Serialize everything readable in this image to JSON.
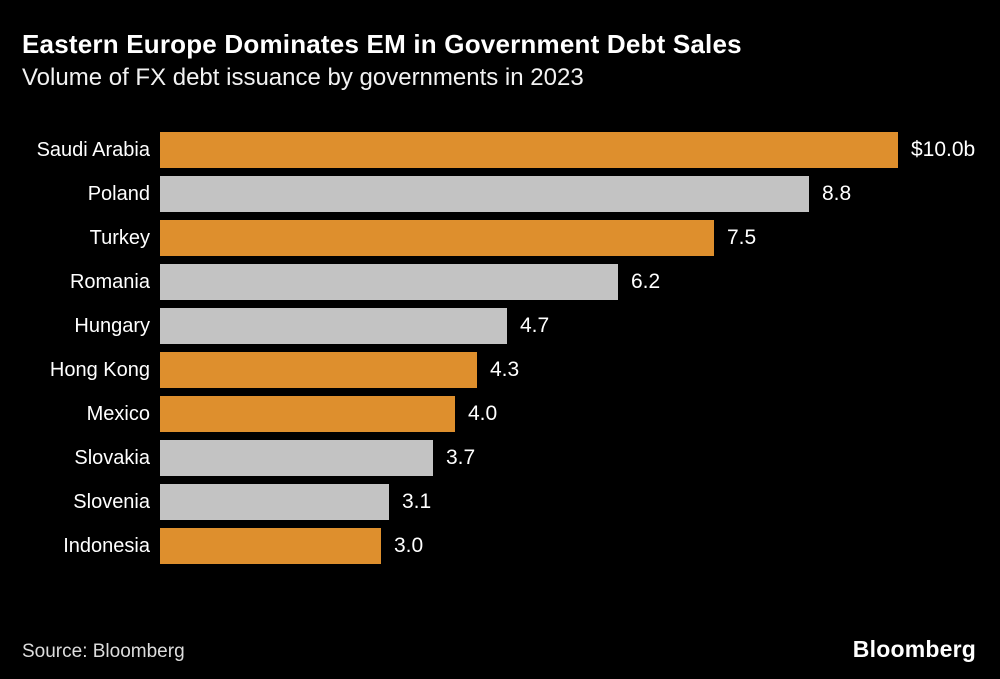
{
  "header": {
    "title": "Eastern Europe Dominates EM in Government Debt Sales",
    "subtitle": "Volume of FX debt issuance by governments in 2023"
  },
  "chart_data": {
    "type": "bar",
    "orientation": "horizontal",
    "title": "Eastern Europe Dominates EM in Government Debt Sales",
    "subtitle": "Volume of FX debt issuance by governments in 2023",
    "categories": [
      "Saudi Arabia",
      "Poland",
      "Turkey",
      "Romania",
      "Hungary",
      "Hong Kong",
      "Mexico",
      "Slovakia",
      "Slovenia",
      "Indonesia"
    ],
    "values": [
      10.0,
      8.8,
      7.5,
      6.2,
      4.7,
      4.3,
      4.0,
      3.7,
      3.1,
      3.0
    ],
    "value_labels": [
      "$10.0b",
      "8.8",
      "7.5",
      "6.2",
      "4.7",
      "4.3",
      "4.0",
      "3.7",
      "3.1",
      "3.0"
    ],
    "bar_colors": [
      "#DE8F2D",
      "#C3C3C3",
      "#DE8F2D",
      "#C3C3C3",
      "#C3C3C3",
      "#DE8F2D",
      "#DE8F2D",
      "#C3C3C3",
      "#C3C3C3",
      "#DE8F2D"
    ],
    "xlabel": "",
    "ylabel": "",
    "xlim": [
      0,
      10.0
    ],
    "grid": false,
    "legend": false
  },
  "footer": {
    "source": "Source: Bloomberg",
    "logo": "Bloomberg"
  },
  "colors": {
    "background": "#000000",
    "accent_orange": "#DE8F2D",
    "neutral_gray": "#C3C3C3",
    "text": "#FFFFFF"
  }
}
